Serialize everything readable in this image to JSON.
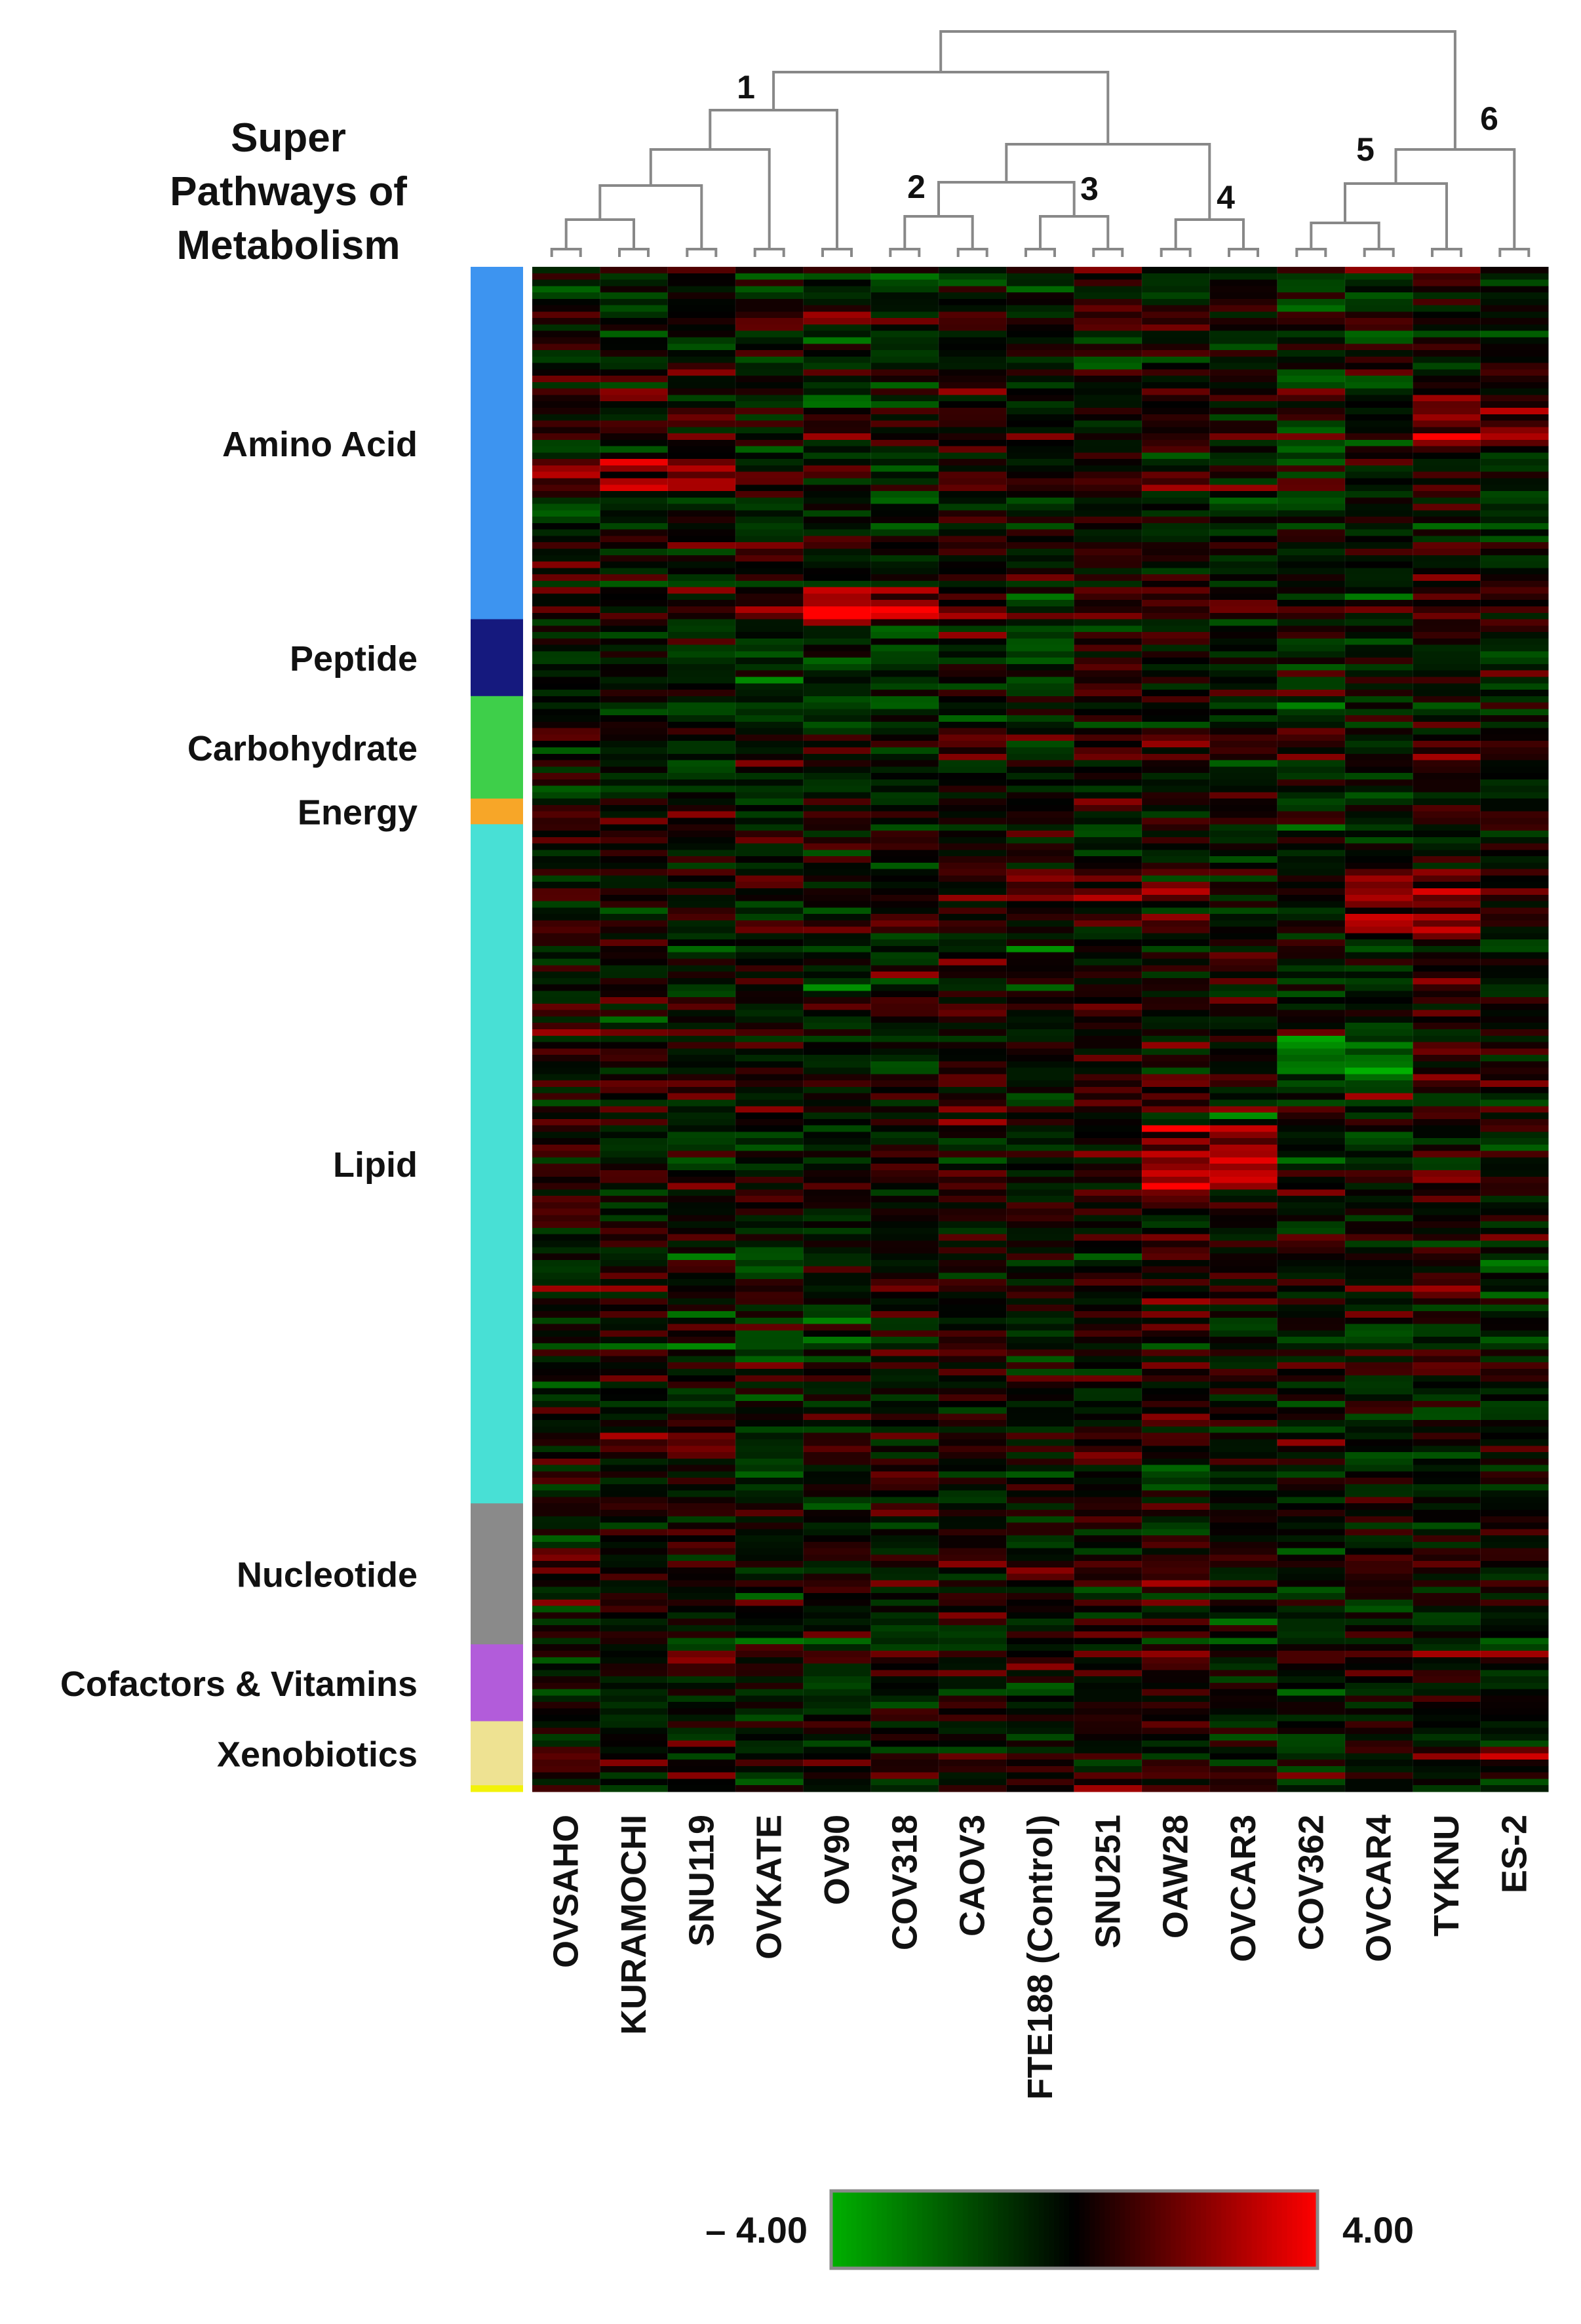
{
  "chart_data": {
    "type": "heatmap",
    "title": "Super Pathways of Metabolism",
    "title_lines": [
      "Super",
      "Pathways of",
      "Metabolism"
    ],
    "columns": [
      "OVSAHO",
      "KURAMOCHI",
      "SNU119",
      "OVKATE",
      "OV90",
      "COV318",
      "CAOV3",
      "FTE188 (Control)",
      "SNU251",
      "OAW28",
      "OVCAR3",
      "COV362",
      "OVCAR4",
      "TYKNU",
      "ES-2"
    ],
    "row_groups": [
      {
        "name": "Amino Acid",
        "color": "#3D94F0",
        "rows": 55
      },
      {
        "name": "Peptide",
        "color": "#15197E",
        "rows": 12
      },
      {
        "name": "Carbohydrate",
        "color": "#3ECF4A",
        "rows": 16
      },
      {
        "name": "Energy",
        "color": "#F7A628",
        "rows": 4
      },
      {
        "name": "Lipid",
        "color": "#48E0D5",
        "rows": 106
      },
      {
        "name": "Nucleotide",
        "color": "#8A8A8A",
        "rows": 22
      },
      {
        "name": "Cofactors & Vitamins",
        "color": "#B25CDA",
        "rows": 12
      },
      {
        "name": "Xenobiotics",
        "color": "#EEE292",
        "rows": 10
      },
      {
        "name": "",
        "color": "#F2F20A",
        "rows": 1
      }
    ],
    "dendrogram_labels": [
      "1",
      "2",
      "3",
      "4",
      "5",
      "6"
    ],
    "color_scale": {
      "min": -4.0,
      "max": 4.0,
      "min_label": "– 4.00",
      "max_label": "4.00",
      "low_color": "#00B000",
      "mid_color": "#000000",
      "high_color": "#FF0000"
    },
    "seed": 20240517
  }
}
